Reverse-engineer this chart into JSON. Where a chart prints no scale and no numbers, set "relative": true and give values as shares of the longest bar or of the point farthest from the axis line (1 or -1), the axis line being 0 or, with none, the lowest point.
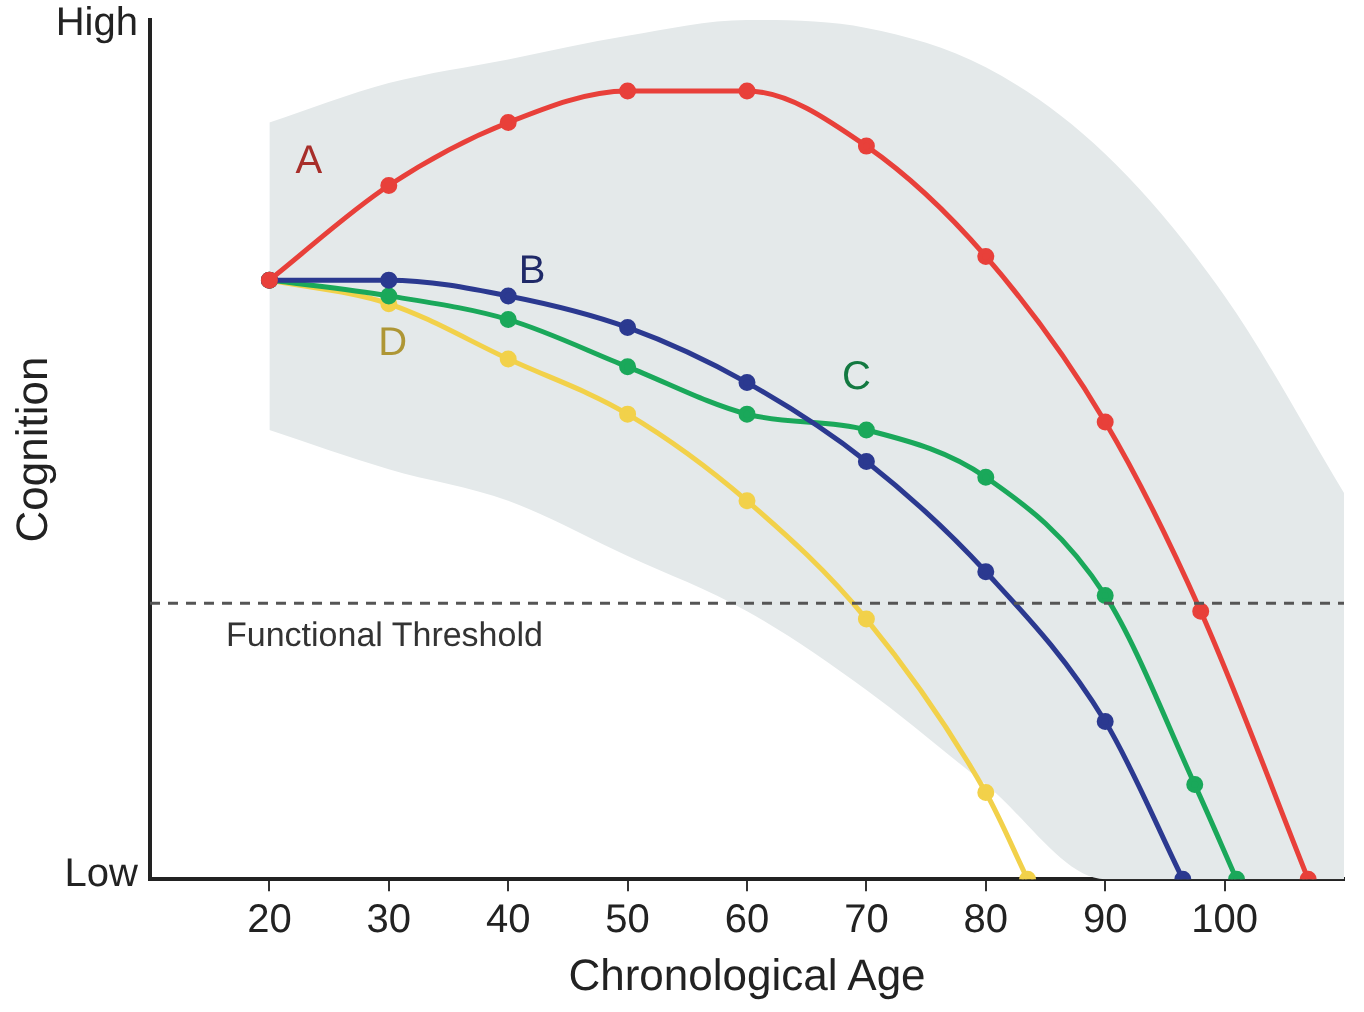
{
  "chart_data": {
    "type": "line",
    "xlabel": "Chronological Age",
    "ylabel": "Cognition",
    "relative": true,
    "xlim": [
      10,
      110
    ],
    "xticks": [
      20,
      30,
      40,
      50,
      60,
      70,
      80,
      90,
      100
    ],
    "grid": false,
    "legend": false,
    "marker": "circle",
    "line_style": "solid",
    "annotations": [
      "High",
      "Low"
    ],
    "series": [
      {
        "color": "#e4e9ea",
        "x": [
          20,
          30,
          40,
          50,
          60,
          70,
          80,
          90,
          100,
          110
        ],
        "values": [
          null,
          null,
          null,
          null,
          null,
          null,
          null,
          null,
          null,
          null
        ],
        "lower": [
          0.57,
          0.52,
          0.48,
          0.41,
          0.34,
          0.24,
          0.12,
          0,
          0,
          0
        ],
        "upper": [
          0.96,
          1.01,
          1.04,
          1.07,
          1.09,
          1.08,
          1.03,
          0.92,
          0.74,
          0.49
        ]
      },
      {
        "name": "A",
        "color": "#e8403a",
        "x": [
          20,
          30,
          40,
          50,
          60,
          70,
          80,
          90,
          98,
          107
        ],
        "values": [
          0.76,
          0.88,
          0.96,
          1,
          1,
          0.93,
          0.79,
          0.58,
          0.34,
          0
        ]
      },
      {
        "name": "B",
        "color": "#2b3990",
        "x": [
          20,
          30,
          40,
          50,
          60,
          70,
          80,
          90,
          96.5
        ],
        "values": [
          0.76,
          0.76,
          0.74,
          0.7,
          0.63,
          0.53,
          0.39,
          0.2,
          0
        ]
      },
      {
        "name": "C",
        "color": "#1aa85a",
        "x": [
          20,
          30,
          40,
          50,
          60,
          70,
          80,
          90,
          97.5,
          101
        ],
        "values": [
          0.76,
          0.74,
          0.71,
          0.65,
          0.59,
          0.57,
          0.51,
          0.36,
          0.12,
          0
        ]
      },
      {
        "name": "D",
        "color": "#f2d14a",
        "x": [
          20,
          30,
          40,
          50,
          60,
          70,
          80,
          83.5
        ],
        "values": [
          0.76,
          0.73,
          0.66,
          0.59,
          0.48,
          0.33,
          0.11,
          0
        ]
      }
    ],
    "ref_lines": [
      {
        "axis": "y",
        "value": 0.35,
        "label": "Functional Threshold",
        "color": "#555555",
        "line_style": "dashed"
      }
    ]
  }
}
